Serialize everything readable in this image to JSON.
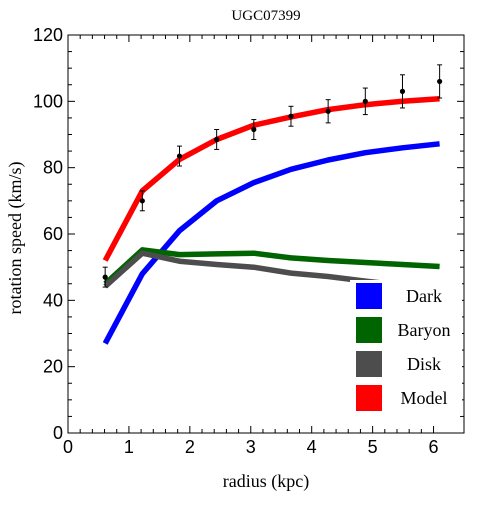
{
  "chart_data": {
    "type": "line",
    "title": "UGC07399",
    "xlabel": "radius (kpc)",
    "ylabel": "rotation speed (km/s)",
    "xlim": [
      0,
      6.5
    ],
    "ylim": [
      0,
      120
    ],
    "xticks": [
      0,
      1,
      2,
      3,
      4,
      5,
      6
    ],
    "yticks": [
      0,
      20,
      40,
      60,
      80,
      100,
      120
    ],
    "grid": false,
    "legend_position": "bottom-right",
    "x": [
      0.61,
      1.22,
      1.83,
      2.44,
      3.05,
      3.66,
      4.27,
      4.88,
      5.49,
      6.1
    ],
    "series": [
      {
        "name": "Dark",
        "color": "#0000ff",
        "values": [
          27,
          48,
          61,
          70,
          75.5,
          79.5,
          82.3,
          84.5,
          86,
          87.2
        ]
      },
      {
        "name": "Baryon",
        "color": "#006400",
        "values": [
          45,
          55.2,
          53.8,
          54,
          54.2,
          52.8,
          52,
          51.4,
          50.8,
          50.2
        ]
      },
      {
        "name": "Disk",
        "color": "#4d4d4d",
        "values": [
          44.2,
          54.2,
          51.8,
          50.8,
          50,
          48.2,
          47.2,
          45.8,
          44.5,
          43.2
        ]
      },
      {
        "name": "Model",
        "color": "#ff0000",
        "values": [
          52,
          73,
          82.5,
          88.5,
          92.8,
          95.3,
          97.5,
          99,
          100,
          100.8
        ]
      }
    ],
    "observations": {
      "x": [
        0.61,
        1.22,
        1.83,
        2.44,
        3.05,
        3.66,
        4.27,
        4.88,
        5.49,
        6.1
      ],
      "y": [
        47,
        70,
        83.5,
        88.5,
        91.5,
        95.5,
        97,
        100,
        103,
        106
      ],
      "error": [
        3,
        3,
        3,
        3,
        3,
        3,
        3.5,
        4,
        5,
        5
      ]
    }
  }
}
